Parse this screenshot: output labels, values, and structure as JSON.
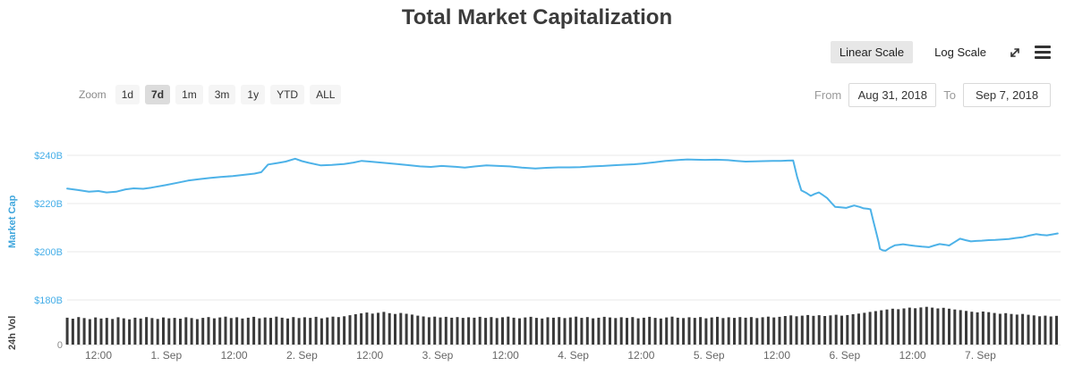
{
  "title": "Total Market Capitalization",
  "scale": {
    "linear_label": "Linear Scale",
    "log_label": "Log Scale",
    "active": "Linear Scale"
  },
  "icons": {
    "fullscreen": "expand-arrows-icon",
    "menu": "hamburger-menu-icon"
  },
  "zoom": {
    "label": "Zoom",
    "options": [
      "1d",
      "7d",
      "1m",
      "3m",
      "1y",
      "YTD",
      "ALL"
    ],
    "active": "7d"
  },
  "range": {
    "from_label": "From",
    "from_value": "Aug 31, 2018",
    "to_label": "To",
    "to_value": "Sep 7, 2018"
  },
  "chart_data": {
    "type": "line",
    "subtype": "line with volume bars (stock chart)",
    "title": "Total Market Capitalization",
    "cap_axis_title": "Market Cap",
    "vol_axis_title": "24h Vol",
    "x_unit": "days since Aug 31, 2018 00:00",
    "x_range": [
      0.27,
      7.57
    ],
    "y_axis": {
      "unit": "$B",
      "color": "#45aee8",
      "ticks": [
        {
          "label": "$240B",
          "value": 240
        },
        {
          "label": "$220B",
          "value": 220
        },
        {
          "label": "$200B",
          "value": 200
        },
        {
          "label": "$180B",
          "value": 180
        }
      ]
    },
    "vol_axis": {
      "color": "#8a8a8a",
      "ticks": [
        {
          "label": "0",
          "value": 0
        }
      ]
    },
    "x_ticks": [
      {
        "label": "12:00",
        "day": 0.5
      },
      {
        "label": "1. Sep",
        "day": 1
      },
      {
        "label": "12:00",
        "day": 1.5
      },
      {
        "label": "2. Sep",
        "day": 2
      },
      {
        "label": "12:00",
        "day": 2.5
      },
      {
        "label": "3. Sep",
        "day": 3
      },
      {
        "label": "12:00",
        "day": 3.5
      },
      {
        "label": "4. Sep",
        "day": 4
      },
      {
        "label": "12:00",
        "day": 4.5
      },
      {
        "label": "5. Sep",
        "day": 5
      },
      {
        "label": "12:00",
        "day": 5.5
      },
      {
        "label": "6. Sep",
        "day": 6
      },
      {
        "label": "12:00",
        "day": 6.5
      },
      {
        "label": "7. Sep",
        "day": 7
      }
    ],
    "series": [
      {
        "name": "Market Cap",
        "color": "#4db2e8",
        "unit": "$B",
        "points": [
          [
            0.27,
            226.2
          ],
          [
            0.35,
            225.6
          ],
          [
            0.43,
            224.9
          ],
          [
            0.5,
            225.2
          ],
          [
            0.56,
            224.6
          ],
          [
            0.63,
            224.9
          ],
          [
            0.7,
            225.9
          ],
          [
            0.76,
            226.3
          ],
          [
            0.83,
            226.1
          ],
          [
            0.89,
            226.6
          ],
          [
            0.99,
            227.6
          ],
          [
            1.08,
            228.6
          ],
          [
            1.16,
            229.5
          ],
          [
            1.24,
            230.1
          ],
          [
            1.32,
            230.6
          ],
          [
            1.4,
            231.0
          ],
          [
            1.49,
            231.4
          ],
          [
            1.57,
            231.9
          ],
          [
            1.65,
            232.4
          ],
          [
            1.7,
            233.0
          ],
          [
            1.75,
            236.2
          ],
          [
            1.82,
            236.8
          ],
          [
            1.88,
            237.4
          ],
          [
            1.95,
            238.6
          ],
          [
            2.0,
            237.6
          ],
          [
            2.05,
            236.9
          ],
          [
            2.14,
            235.8
          ],
          [
            2.22,
            236.0
          ],
          [
            2.31,
            236.4
          ],
          [
            2.38,
            237.0
          ],
          [
            2.44,
            237.7
          ],
          [
            2.5,
            237.4
          ],
          [
            2.6,
            236.9
          ],
          [
            2.7,
            236.4
          ],
          [
            2.8,
            235.8
          ],
          [
            2.87,
            235.4
          ],
          [
            2.95,
            235.2
          ],
          [
            3.03,
            235.6
          ],
          [
            3.12,
            235.3
          ],
          [
            3.2,
            234.9
          ],
          [
            3.28,
            235.4
          ],
          [
            3.36,
            235.8
          ],
          [
            3.45,
            235.6
          ],
          [
            3.53,
            235.4
          ],
          [
            3.62,
            234.9
          ],
          [
            3.72,
            234.5
          ],
          [
            3.8,
            234.8
          ],
          [
            3.89,
            235.0
          ],
          [
            3.97,
            235.0
          ],
          [
            4.05,
            235.1
          ],
          [
            4.14,
            235.4
          ],
          [
            4.22,
            235.6
          ],
          [
            4.3,
            235.9
          ],
          [
            4.38,
            236.1
          ],
          [
            4.45,
            236.3
          ],
          [
            4.51,
            236.6
          ],
          [
            4.6,
            237.1
          ],
          [
            4.68,
            237.7
          ],
          [
            4.76,
            238.0
          ],
          [
            4.84,
            238.3
          ],
          [
            4.9,
            238.2
          ],
          [
            4.97,
            238.1
          ],
          [
            5.05,
            238.2
          ],
          [
            5.14,
            238.0
          ],
          [
            5.2,
            237.7
          ],
          [
            5.27,
            237.4
          ],
          [
            5.34,
            237.5
          ],
          [
            5.4,
            237.6
          ],
          [
            5.47,
            237.7
          ],
          [
            5.53,
            237.7
          ],
          [
            5.58,
            237.8
          ],
          [
            5.62,
            237.9
          ],
          [
            5.65,
            231.0
          ],
          [
            5.68,
            225.5
          ],
          [
            5.72,
            224.3
          ],
          [
            5.75,
            223.2
          ],
          [
            5.78,
            224.0
          ],
          [
            5.81,
            224.6
          ],
          [
            5.84,
            223.5
          ],
          [
            5.87,
            222.3
          ],
          [
            5.9,
            220.4
          ],
          [
            5.93,
            218.6
          ],
          [
            5.97,
            218.4
          ],
          [
            6.01,
            218.2
          ],
          [
            6.04,
            218.7
          ],
          [
            6.07,
            219.2
          ],
          [
            6.11,
            218.6
          ],
          [
            6.14,
            218.0
          ],
          [
            6.17,
            217.8
          ],
          [
            6.19,
            217.6
          ],
          [
            6.21,
            213.0
          ],
          [
            6.23,
            208.5
          ],
          [
            6.25,
            204.0
          ],
          [
            6.26,
            201.2
          ],
          [
            6.28,
            200.6
          ],
          [
            6.3,
            200.4
          ],
          [
            6.33,
            201.5
          ],
          [
            6.37,
            202.7
          ],
          [
            6.4,
            202.9
          ],
          [
            6.43,
            203.1
          ],
          [
            6.48,
            202.7
          ],
          [
            6.52,
            202.4
          ],
          [
            6.57,
            202.1
          ],
          [
            6.62,
            201.9
          ],
          [
            6.66,
            202.6
          ],
          [
            6.7,
            203.2
          ],
          [
            6.74,
            202.9
          ],
          [
            6.77,
            202.6
          ],
          [
            6.81,
            204.0
          ],
          [
            6.85,
            205.4
          ],
          [
            6.89,
            204.8
          ],
          [
            6.93,
            204.3
          ],
          [
            6.97,
            204.5
          ],
          [
            7.01,
            204.6
          ],
          [
            7.06,
            204.8
          ],
          [
            7.11,
            204.9
          ],
          [
            7.16,
            205.1
          ],
          [
            7.21,
            205.3
          ],
          [
            7.26,
            205.7
          ],
          [
            7.31,
            206.0
          ],
          [
            7.36,
            206.7
          ],
          [
            7.41,
            207.3
          ],
          [
            7.45,
            207.0
          ],
          [
            7.49,
            206.8
          ],
          [
            7.53,
            207.2
          ],
          [
            7.57,
            207.6
          ]
        ]
      }
    ],
    "volume": {
      "name": "24h Vol",
      "color": "#3a3a3a",
      "unit": "$B",
      "start_day": 0.27,
      "step_days": 0.0416667,
      "values": [
        13.1,
        12.6,
        13.4,
        12.9,
        12.4,
        13.2,
        12.7,
        13.0,
        12.5,
        13.3,
        12.8,
        12.3,
        13.1,
        12.7,
        13.4,
        12.9,
        12.5,
        13.2,
        12.8,
        13.0,
        12.6,
        13.3,
        12.9,
        12.4,
        13.0,
        13.4,
        12.8,
        13.2,
        13.6,
        12.9,
        13.3,
        12.7,
        13.1,
        13.5,
        12.8,
        13.2,
        13.0,
        13.6,
        13.1,
        12.7,
        13.4,
        12.9,
        13.3,
        13.0,
        13.5,
        12.8,
        13.2,
        13.6,
        13.4,
        13.8,
        14.3,
        14.8,
        15.2,
        15.6,
        15.1,
        15.5,
        15.9,
        15.3,
        14.9,
        15.4,
        15.0,
        14.6,
        14.1,
        13.7,
        13.3,
        13.6,
        13.2,
        13.5,
        13.1,
        13.4,
        13.0,
        13.3,
        13.1,
        13.5,
        13.0,
        13.4,
        12.9,
        13.3,
        13.6,
        13.1,
        12.8,
        13.2,
        13.5,
        13.0,
        12.7,
        13.3,
        13.1,
        13.4,
        12.9,
        13.2,
        13.6,
        13.0,
        13.4,
        12.8,
        13.1,
        13.5,
        13.2,
        12.9,
        13.3,
        13.0,
        13.4,
        12.8,
        13.1,
        13.5,
        13.0,
        12.7,
        13.2,
        13.6,
        13.1,
        12.9,
        13.3,
        13.0,
        13.4,
        12.8,
        13.2,
        13.5,
        12.9,
        13.3,
        13.0,
        13.4,
        13.1,
        13.4,
        12.9,
        13.3,
        13.6,
        13.2,
        13.5,
        13.9,
        14.2,
        13.8,
        14.1,
        14.4,
        14.0,
        14.3,
        13.9,
        14.2,
        14.5,
        14.1,
        14.4,
        14.8,
        15.1,
        15.5,
        15.9,
        16.3,
        16.7,
        17.1,
        17.5,
        17.2,
        17.6,
        18.0,
        17.7,
        18.1,
        18.4,
        18.0,
        17.6,
        17.9,
        17.5,
        17.1,
        16.8,
        16.4,
        16.0,
        15.7,
        16.1,
        15.8,
        15.4,
        15.0,
        15.3,
        14.9,
        14.6,
        14.9,
        14.5,
        14.2,
        13.8,
        14.1,
        13.7,
        14.0
      ]
    }
  }
}
